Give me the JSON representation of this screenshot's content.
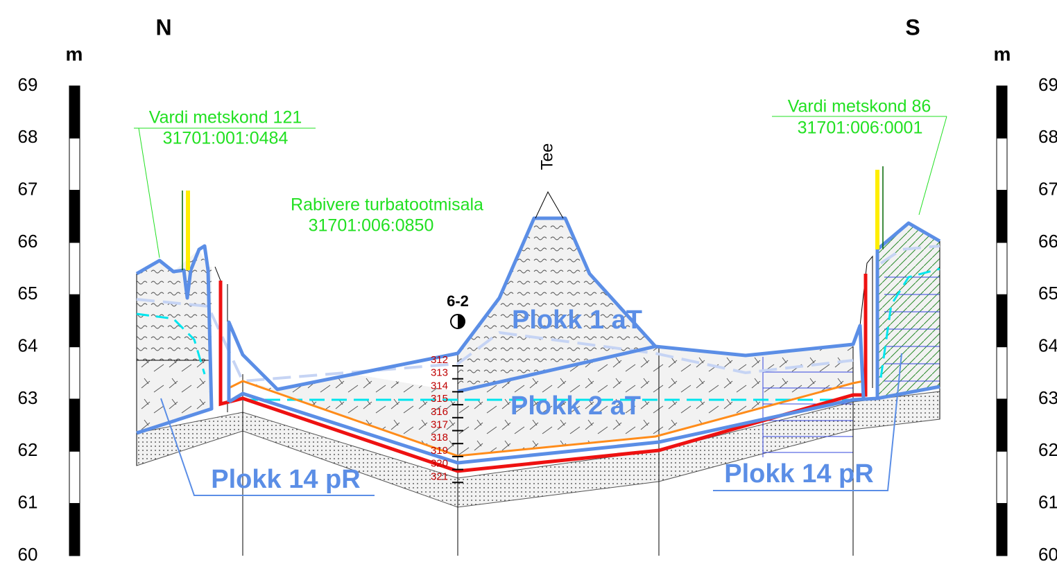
{
  "compass": {
    "north": "N",
    "south": "S"
  },
  "scale": {
    "unit_left": "m",
    "unit_right": "m",
    "levels": [
      69,
      68,
      67,
      66,
      65,
      64,
      63,
      62,
      61,
      60
    ]
  },
  "parcels": [
    {
      "name": "Vardi metskond 121",
      "code": "31701:001:0484"
    },
    {
      "name": "Rabivere turbatootmisala",
      "code": "31701:006:0850"
    },
    {
      "name": "Vardi metskond 86",
      "code": "31701:006:0001"
    }
  ],
  "road": "Tee",
  "borehole": {
    "id": "6-2",
    "samples": [
      312,
      313,
      314,
      315,
      316,
      317,
      318,
      319,
      320,
      321
    ]
  },
  "blocks": [
    "Plokk 1 aT",
    "Plokk 2 aT",
    "Plokk 14 pR",
    "Plokk 14 pR"
  ]
}
